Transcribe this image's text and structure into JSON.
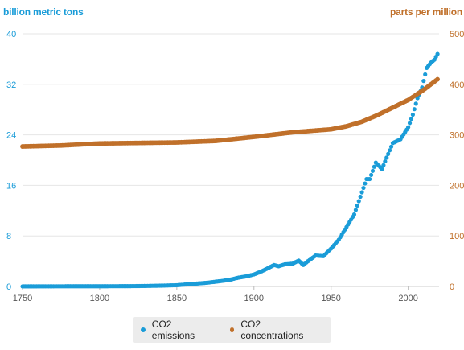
{
  "chart_data": {
    "type": "scatter",
    "left_axis_title": "billion metric tons",
    "right_axis_title": "parts per million",
    "x_ticks": [
      1750,
      1800,
      1850,
      1900,
      1950,
      2000
    ],
    "xlim": [
      1750,
      2020
    ],
    "left_ticks": [
      0,
      8,
      16,
      24,
      32,
      40
    ],
    "left_ylim": [
      0,
      40
    ],
    "right_ticks": [
      0,
      100,
      200,
      300,
      400,
      500
    ],
    "right_ylim": [
      0,
      500
    ],
    "grid": "horizontal",
    "legend_position": "bottom",
    "series": [
      {
        "name": "CO2 emissions",
        "axis": "left",
        "color": "#1a9cd8",
        "x": [
          1750,
          1760,
          1770,
          1780,
          1790,
          1800,
          1810,
          1820,
          1830,
          1840,
          1850,
          1860,
          1870,
          1880,
          1885,
          1890,
          1895,
          1900,
          1905,
          1910,
          1913,
          1916,
          1920,
          1925,
          1929,
          1932,
          1935,
          1940,
          1945,
          1950,
          1955,
          1960,
          1965,
          1970,
          1973,
          1975,
          1979,
          1983,
          1986,
          1990,
          1995,
          2000,
          2003,
          2006,
          2009,
          2012,
          2015,
          2017,
          2019
        ],
        "y": [
          0.01,
          0.02,
          0.02,
          0.03,
          0.03,
          0.03,
          0.04,
          0.05,
          0.08,
          0.13,
          0.2,
          0.4,
          0.6,
          0.9,
          1.1,
          1.4,
          1.6,
          1.9,
          2.4,
          3.0,
          3.4,
          3.2,
          3.5,
          3.6,
          4.1,
          3.4,
          4.0,
          4.9,
          4.8,
          6.0,
          7.4,
          9.4,
          11.4,
          14.9,
          17.0,
          17.0,
          19.6,
          18.6,
          20.4,
          22.7,
          23.3,
          25.2,
          27.2,
          29.8,
          31.5,
          34.6,
          35.5,
          35.9,
          36.8
        ]
      },
      {
        "name": "CO2 concentrations",
        "axis": "right",
        "color": "#c0702a",
        "x": [
          1750,
          1775,
          1800,
          1825,
          1850,
          1875,
          1900,
          1925,
          1950,
          1960,
          1970,
          1980,
          1990,
          2000,
          2010,
          2019
        ],
        "y": [
          277,
          279,
          283,
          284,
          285,
          288,
          296,
          305,
          311,
          317,
          326,
          339,
          354,
          369,
          389,
          410
        ]
      }
    ]
  }
}
